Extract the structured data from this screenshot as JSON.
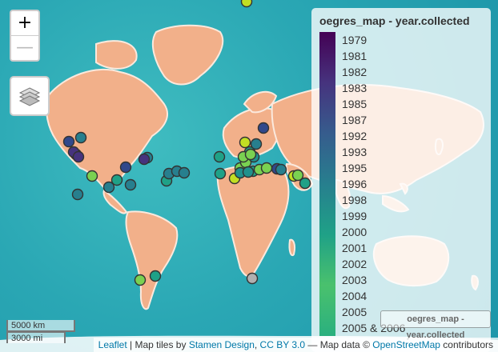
{
  "map": {
    "zoom_in_label": "+",
    "zoom_out_label": "—"
  },
  "legend": {
    "title": "oegres_map - year.collected",
    "ramp_colors": [
      "#440154",
      "#46337e",
      "#365c8d",
      "#277f8e",
      "#1fa187",
      "#4ac16d",
      "#2ab07f"
    ],
    "labels": [
      "1979",
      "1981",
      "1982",
      "1983",
      "1985",
      "1987",
      "1992",
      "1993",
      "1995",
      "1996",
      "1998",
      "1999",
      "2000",
      "2001",
      "2002",
      "2003",
      "2004",
      "2005",
      "2005 & 2006"
    ]
  },
  "layer_title_control": "oegres_map - year.collected",
  "scale": {
    "km": "5000 km",
    "mi": "3000 mi"
  },
  "attribution": {
    "leaflet": "Leaflet",
    "sep1": " | Map tiles by ",
    "stamen": "Stamen Design",
    "sep2": ", ",
    "cc": "CC BY 3.0",
    "sep3": " — Map data © ",
    "osm": "OpenStreetMap",
    "contrib": " contributors"
  },
  "markers": {
    "colors": {
      "purple": "#46337e",
      "navy": "#31488b",
      "blue": "#277f8e",
      "teal": "#21918c",
      "green": "#1fa187",
      "lime": "#7ad151",
      "yellowgreen": "#c2df23",
      "gray": "#b0b0b0"
    }
  }
}
